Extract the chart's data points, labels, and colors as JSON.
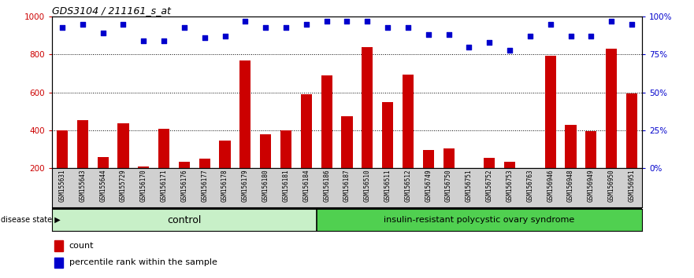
{
  "title": "GDS3104 / 211161_s_at",
  "samples": [
    "GSM155631",
    "GSM155643",
    "GSM155644",
    "GSM155729",
    "GSM156170",
    "GSM156171",
    "GSM156176",
    "GSM156177",
    "GSM156178",
    "GSM156179",
    "GSM156180",
    "GSM156181",
    "GSM156184",
    "GSM156186",
    "GSM156187",
    "GSM156510",
    "GSM156511",
    "GSM156512",
    "GSM156749",
    "GSM156750",
    "GSM156751",
    "GSM156752",
    "GSM156753",
    "GSM156763",
    "GSM156946",
    "GSM156948",
    "GSM156949",
    "GSM156950",
    "GSM156951"
  ],
  "counts": [
    400,
    455,
    260,
    435,
    210,
    410,
    235,
    250,
    345,
    770,
    380,
    400,
    590,
    690,
    475,
    840,
    550,
    695,
    295,
    305,
    130,
    255,
    235,
    175,
    795,
    430,
    395,
    830,
    595
  ],
  "percentile_ranks": [
    93,
    95,
    89,
    95,
    84,
    84,
    93,
    86,
    87,
    97,
    93,
    93,
    95,
    97,
    97,
    97,
    93,
    93,
    88,
    88,
    80,
    83,
    78,
    87,
    95,
    87,
    87,
    97,
    95
  ],
  "control_count": 13,
  "disease_label": "insulin-resistant polycystic ovary syndrome",
  "control_label": "control",
  "bar_color": "#cc0000",
  "dot_color": "#0000cc",
  "ylim_left": [
    200,
    1000
  ],
  "ylim_right": [
    0,
    100
  ],
  "yticks_left": [
    200,
    400,
    600,
    800,
    1000
  ],
  "yticks_right": [
    0,
    25,
    50,
    75,
    100
  ],
  "grid_values": [
    400,
    600,
    800
  ],
  "ctrl_green": "#c8f0c8",
  "disease_green": "#50d050",
  "xtick_bg": "#d0d0d0",
  "legend_count_label": "count",
  "legend_pct_label": "percentile rank within the sample",
  "disease_state_label": "disease state"
}
